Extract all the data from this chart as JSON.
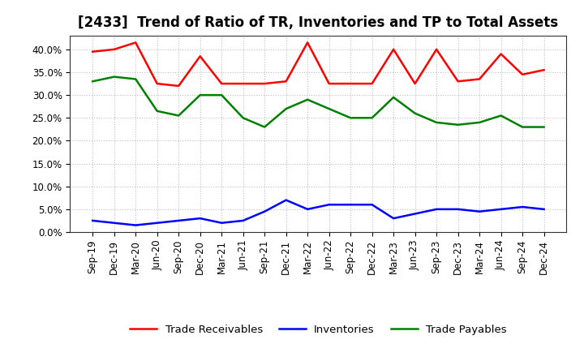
{
  "title": "[2433]  Trend of Ratio of TR, Inventories and TP to Total Assets",
  "x_labels": [
    "Sep-19",
    "Dec-19",
    "Mar-20",
    "Jun-20",
    "Sep-20",
    "Dec-20",
    "Mar-21",
    "Jun-21",
    "Sep-21",
    "Dec-21",
    "Mar-22",
    "Jun-22",
    "Sep-22",
    "Dec-22",
    "Mar-23",
    "Jun-23",
    "Sep-23",
    "Dec-23",
    "Mar-24",
    "Jun-24",
    "Sep-24",
    "Dec-24"
  ],
  "trade_receivables": [
    39.5,
    40.0,
    41.5,
    32.5,
    32.0,
    38.5,
    32.5,
    32.5,
    32.5,
    33.0,
    41.5,
    32.5,
    32.5,
    32.5,
    40.0,
    32.5,
    40.0,
    33.0,
    33.5,
    39.0,
    34.5,
    35.5
  ],
  "inventories": [
    2.5,
    2.0,
    1.5,
    2.0,
    2.5,
    3.0,
    2.0,
    2.5,
    4.5,
    7.0,
    5.0,
    6.0,
    6.0,
    6.0,
    3.0,
    4.0,
    5.0,
    5.0,
    4.5,
    5.0,
    5.5,
    5.0
  ],
  "trade_payables": [
    33.0,
    34.0,
    33.5,
    26.5,
    25.5,
    30.0,
    30.0,
    25.0,
    23.0,
    27.0,
    29.0,
    27.0,
    25.0,
    25.0,
    29.5,
    26.0,
    24.0,
    23.5,
    24.0,
    25.5,
    23.0,
    23.0
  ],
  "color_tr": "#FF0000",
  "color_inv": "#0000FF",
  "color_tp": "#008000",
  "ylim_max": 43,
  "yticks": [
    0.0,
    5.0,
    10.0,
    15.0,
    20.0,
    25.0,
    30.0,
    35.0,
    40.0
  ],
  "grid_color": "#b0b0b0",
  "background_color": "#FFFFFF",
  "title_fontsize": 12,
  "tick_fontsize": 8.5,
  "legend_fontsize": 9.5
}
